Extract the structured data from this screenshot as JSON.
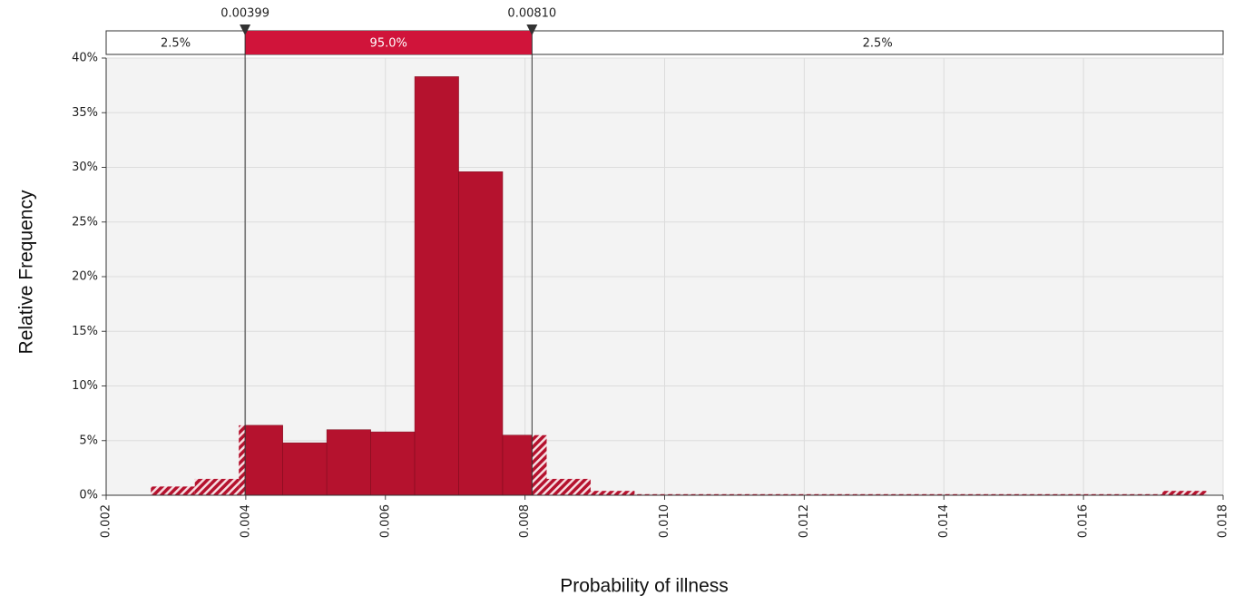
{
  "chart_data": {
    "type": "histogram",
    "x_label": "Probability of illness",
    "y_label": "Relative Frequency",
    "bins": [
      0.00264,
      0.00327,
      0.0039,
      0.00453,
      0.00516,
      0.00579,
      0.00642,
      0.00705,
      0.00768,
      0.00831,
      0.00894,
      0.00957,
      0.0102,
      0.01083,
      0.01146,
      0.01209,
      0.01272,
      0.01335,
      0.01398,
      0.01461,
      0.01524,
      0.01587,
      0.0165,
      0.01713,
      0.01776
    ],
    "values": [
      0.8,
      1.5,
      6.4,
      4.8,
      6.0,
      5.8,
      38.3,
      29.6,
      5.5,
      1.5,
      0.4,
      0.1,
      0.1,
      0.1,
      0.1,
      0.1,
      0.1,
      0.1,
      0.1,
      0.1,
      0.1,
      0.1,
      0.1,
      0.4
    ],
    "color": "#b5122e",
    "xlim": [
      0.002,
      0.018
    ],
    "xticks": [
      0.002,
      0.004,
      0.006,
      0.008,
      {
        "value": 0.01,
        "label": "0.010"
      },
      0.012,
      0.014,
      0.016,
      0.018
    ],
    "ylim": [
      0,
      40
    ],
    "yticks": [
      {
        "value": 0,
        "label": "0%"
      },
      {
        "value": 5,
        "label": "5%"
      },
      {
        "value": 10,
        "label": "10%"
      },
      {
        "value": 15,
        "label": "15%"
      },
      {
        "value": 20,
        "label": "20%"
      },
      {
        "value": 25,
        "label": "25%"
      },
      {
        "value": 30,
        "label": "30%"
      },
      {
        "value": 35,
        "label": "35%"
      },
      {
        "value": 40,
        "label": "40%"
      }
    ],
    "grid": true,
    "delimiters": [
      {
        "value": 0.00399,
        "label": "0.00399"
      },
      {
        "value": 0.0081,
        "label": "0.00810"
      }
    ],
    "bands": [
      {
        "value": 2.5,
        "label": "2.5%"
      },
      {
        "value": 95.0,
        "label": "95.0%"
      },
      {
        "value": 2.5,
        "label": "2.5%"
      }
    ]
  }
}
